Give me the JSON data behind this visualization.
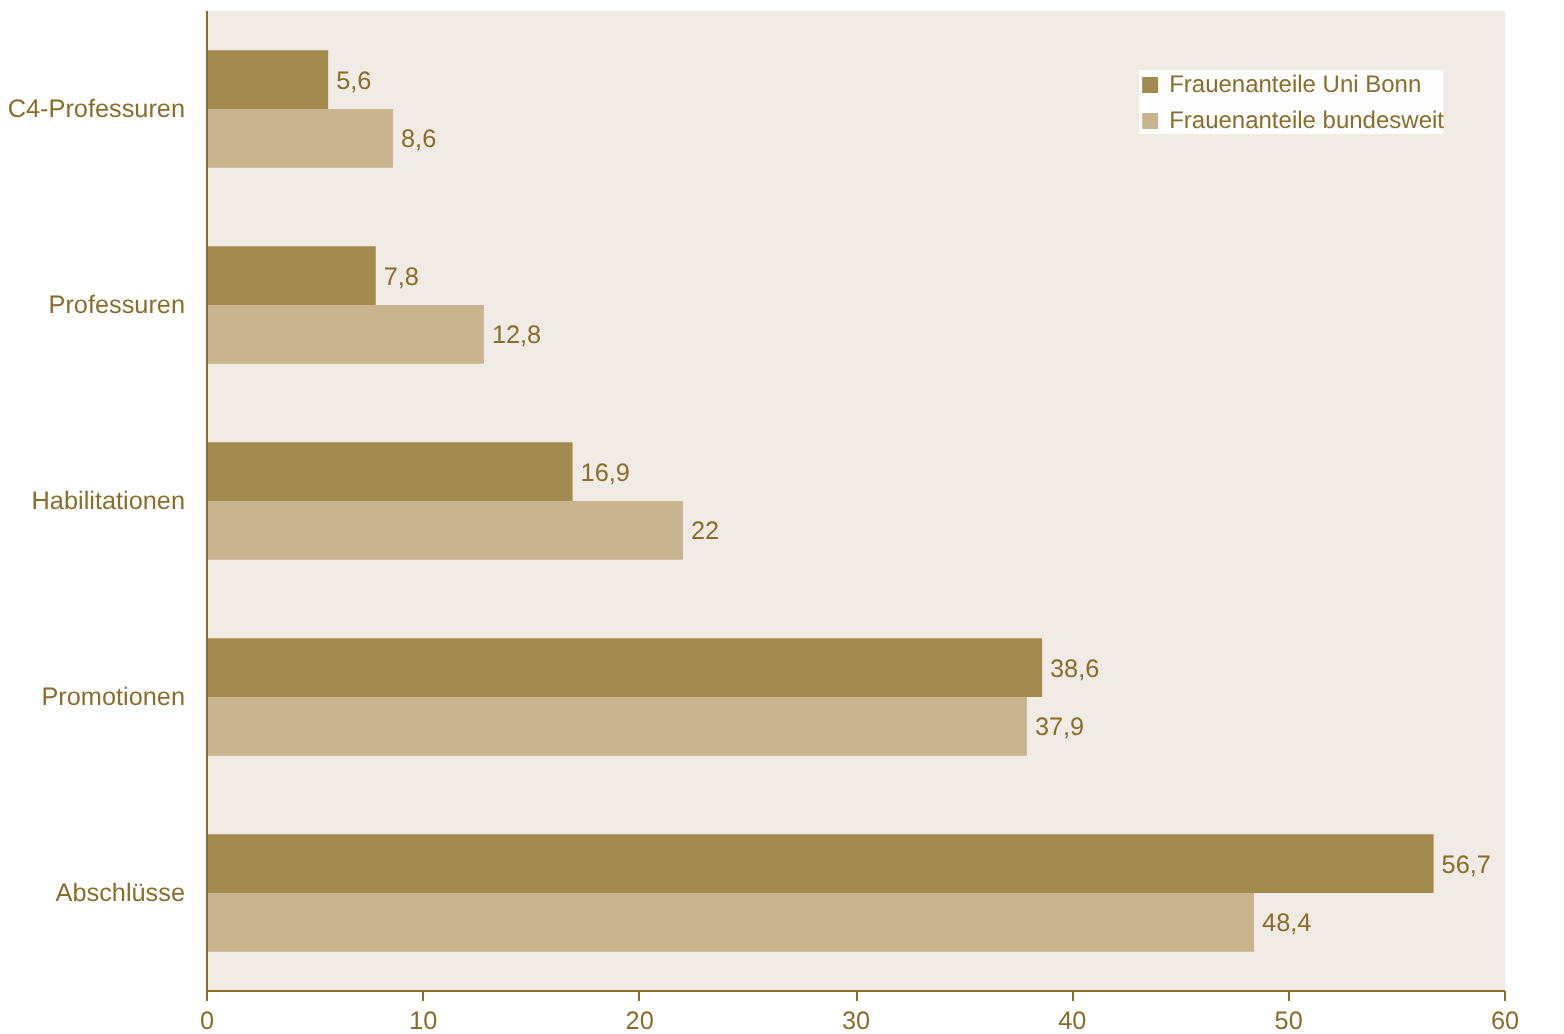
{
  "chart_data": {
    "type": "bar",
    "orientation": "horizontal",
    "categories": [
      "C4-Professuren",
      "Professuren",
      "Habilitationen",
      "Promotionen",
      "Abschlüsse"
    ],
    "series": [
      {
        "name": "Frauenanteile Uni Bonn",
        "color": "#a38a4f",
        "values": [
          5.6,
          7.8,
          16.9,
          38.6,
          56.7
        ],
        "value_labels": [
          "5,6",
          "7,8",
          "16,9",
          "38,6",
          "56,7"
        ]
      },
      {
        "name": "Frauenanteile bundesweit",
        "color": "#c8b48f",
        "values": [
          8.6,
          12.8,
          22,
          37.9,
          48.4
        ],
        "value_labels": [
          "8,6",
          "12,8",
          "22",
          "37,9",
          "48,4"
        ]
      }
    ],
    "xlim": [
      0,
      60
    ],
    "xticks": [
      0,
      10,
      20,
      30,
      40,
      50,
      60
    ],
    "grid": false,
    "legend": "top right"
  }
}
